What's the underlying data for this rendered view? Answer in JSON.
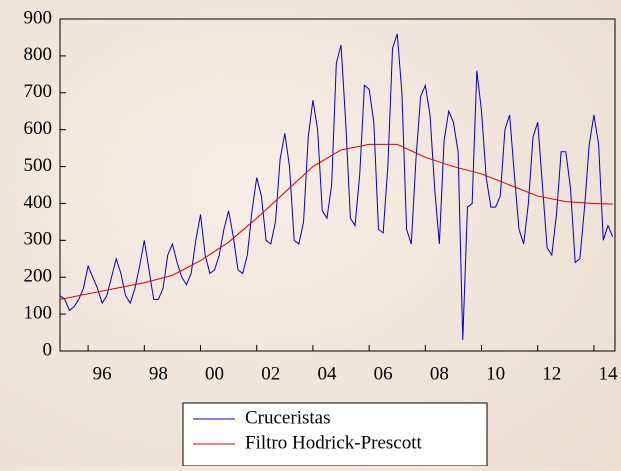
{
  "chart_data": {
    "type": "line",
    "xlim": [
      1995,
      2014.75
    ],
    "ylim": [
      0,
      900
    ],
    "yticks": [
      0,
      100,
      200,
      300,
      400,
      500,
      600,
      700,
      800,
      900
    ],
    "xticks": [
      {
        "value": 1996,
        "label": "96"
      },
      {
        "value": 1998,
        "label": "98"
      },
      {
        "value": 2000,
        "label": "00"
      },
      {
        "value": 2002,
        "label": "02"
      },
      {
        "value": 2004,
        "label": "04"
      },
      {
        "value": 2006,
        "label": "06"
      },
      {
        "value": 2008,
        "label": "08"
      },
      {
        "value": 2010,
        "label": "10"
      },
      {
        "value": 2012,
        "label": "12"
      },
      {
        "value": 2014,
        "label": "14"
      }
    ],
    "legend": "bottom",
    "series": [
      {
        "name": "Cruceristas",
        "color": "#0000cc",
        "x": [
          1995,
          1995.167,
          1995.333,
          1995.5,
          1995.667,
          1995.833,
          1996,
          1996.167,
          1996.333,
          1996.5,
          1996.667,
          1996.833,
          1997,
          1997.167,
          1997.333,
          1997.5,
          1997.667,
          1997.833,
          1998,
          1998.167,
          1998.333,
          1998.5,
          1998.667,
          1998.833,
          1999,
          1999.167,
          1999.333,
          1999.5,
          1999.667,
          1999.833,
          2000,
          2000.167,
          2000.333,
          2000.5,
          2000.667,
          2000.833,
          2001,
          2001.167,
          2001.333,
          2001.5,
          2001.667,
          2001.833,
          2002,
          2002.167,
          2002.333,
          2002.5,
          2002.667,
          2002.833,
          2003,
          2003.167,
          2003.333,
          2003.5,
          2003.667,
          2003.833,
          2004,
          2004.167,
          2004.333,
          2004.5,
          2004.667,
          2004.833,
          2005,
          2005.167,
          2005.333,
          2005.5,
          2005.667,
          2005.833,
          2006,
          2006.167,
          2006.333,
          2006.5,
          2006.667,
          2006.833,
          2007,
          2007.167,
          2007.333,
          2007.5,
          2007.667,
          2007.833,
          2008,
          2008.167,
          2008.333,
          2008.5,
          2008.667,
          2008.833,
          2009,
          2009.167,
          2009.333,
          2009.5,
          2009.667,
          2009.833,
          2010,
          2010.167,
          2010.333,
          2010.5,
          2010.667,
          2010.833,
          2011,
          2011.167,
          2011.333,
          2011.5,
          2011.667,
          2011.833,
          2012,
          2012.167,
          2012.333,
          2012.5,
          2012.667,
          2012.833,
          2013,
          2013.167,
          2013.333,
          2013.5,
          2013.667,
          2013.833,
          2014,
          2014.167,
          2014.333,
          2014.5,
          2014.667
        ],
        "values": [
          150,
          140,
          110,
          120,
          140,
          170,
          230,
          200,
          170,
          130,
          150,
          200,
          250,
          210,
          150,
          130,
          170,
          230,
          300,
          220,
          140,
          140,
          170,
          260,
          290,
          240,
          200,
          180,
          210,
          300,
          370,
          260,
          210,
          220,
          260,
          330,
          380,
          310,
          220,
          210,
          260,
          380,
          470,
          420,
          300,
          290,
          350,
          520,
          590,
          500,
          300,
          290,
          350,
          580,
          680,
          600,
          380,
          360,
          450,
          780,
          830,
          620,
          360,
          340,
          480,
          720,
          710,
          620,
          330,
          320,
          500,
          820,
          860,
          700,
          330,
          290,
          520,
          690,
          720,
          640,
          440,
          290,
          570,
          650,
          620,
          540,
          30,
          390,
          400,
          760,
          650,
          470,
          390,
          390,
          420,
          600,
          640,
          480,
          330,
          290,
          400,
          580,
          620,
          450,
          280,
          260,
          370,
          540,
          540,
          440,
          240,
          250,
          390,
          560,
          640,
          560,
          300,
          340,
          310
        ]
      },
      {
        "name": "Filtro Hodrick-Prescott",
        "color": "#dd0000",
        "x": [
          1995,
          1996,
          1997,
          1998,
          1999,
          2000,
          2001,
          2002,
          2003,
          2004,
          2005,
          2006,
          2007,
          2008,
          2009,
          2010,
          2011,
          2012,
          2013,
          2014,
          2014.667
        ],
        "values": [
          140,
          155,
          170,
          185,
          205,
          245,
          295,
          360,
          430,
          500,
          545,
          560,
          560,
          525,
          500,
          480,
          450,
          420,
          405,
          400,
          398
        ]
      }
    ]
  }
}
